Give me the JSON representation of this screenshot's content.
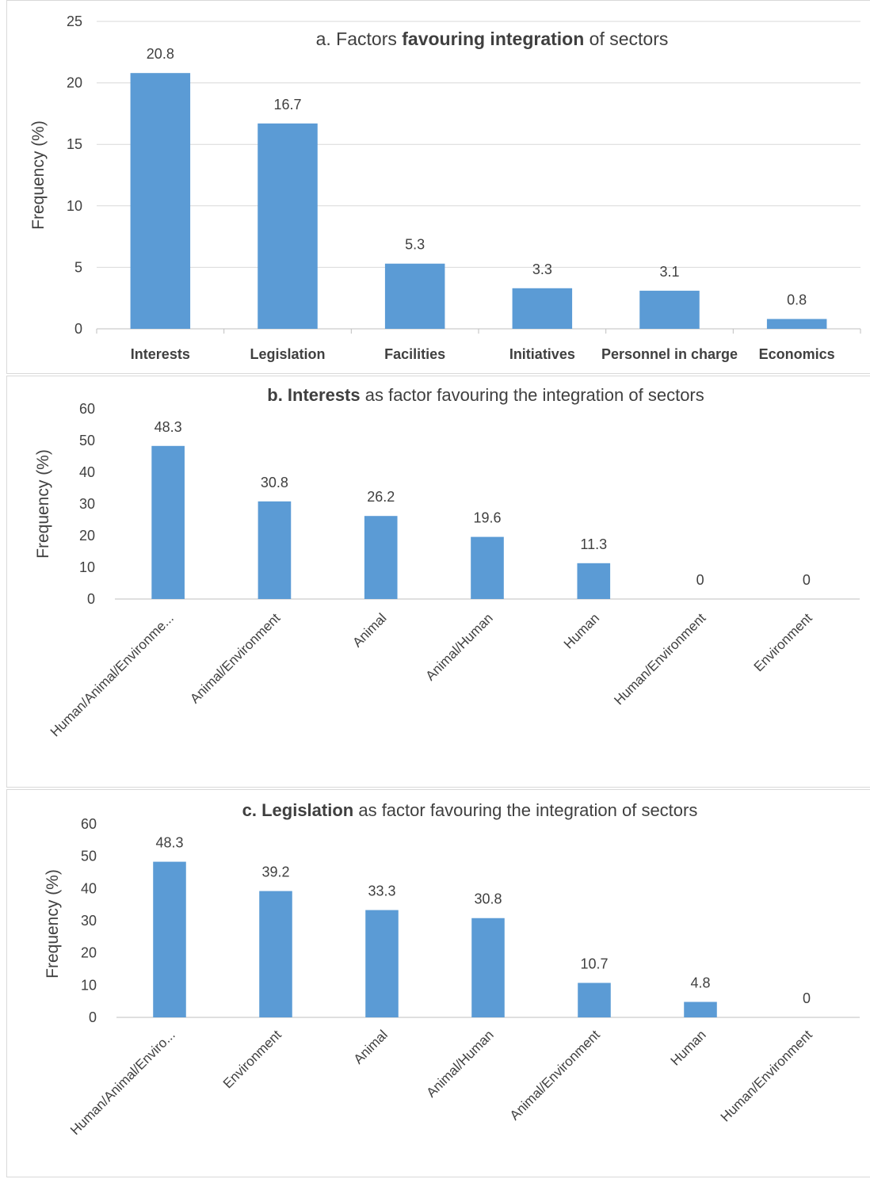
{
  "colors": {
    "bar": "#5b9bd5",
    "grid": "#d9d9d9",
    "text": "#404040",
    "axis": "#bfbfbf"
  },
  "chart_data": [
    {
      "id": "a",
      "type": "bar",
      "title_parts": [
        {
          "text": "a. Factors ",
          "bold": false
        },
        {
          "text": "favouring integration",
          "bold": true
        },
        {
          "text": " of sectors",
          "bold": false
        }
      ],
      "ylabel": "Frequency (%)",
      "xlabel": "",
      "ylim": [
        0,
        25
      ],
      "yticks": [
        "0",
        "5",
        "10",
        "15",
        "20",
        "25"
      ],
      "grid": true,
      "categories": [
        "Interests",
        "Legislation",
        "Facilities",
        "Initiatives",
        "Personnel in charge",
        "Economics"
      ],
      "values": [
        20.8,
        16.7,
        5.3,
        3.3,
        3.1,
        0.8
      ],
      "data_labels": [
        "20.8",
        "16.7",
        "5.3",
        "3.3",
        "3.1",
        "0.8"
      ],
      "bold_categories": true,
      "rotated_categories": false
    },
    {
      "id": "b",
      "type": "bar",
      "title_parts": [
        {
          "text": "b. Interests",
          "bold": true
        },
        {
          "text": " as factor favouring the integration of sectors",
          "bold": false
        }
      ],
      "ylabel": "Frequency (%)",
      "xlabel": "",
      "ylim": [
        0,
        60
      ],
      "yticks": [
        "0",
        "10",
        "20",
        "30",
        "40",
        "50",
        "60"
      ],
      "grid": false,
      "categories": [
        "Human/Animal/Environme...",
        "Animal/Environment",
        "Animal",
        "Animal/Human",
        "Human",
        "Human/Environment",
        "Environment"
      ],
      "values": [
        48.3,
        30.8,
        26.2,
        19.6,
        11.3,
        0,
        0
      ],
      "data_labels": [
        "48.3",
        "30.8",
        "26.2",
        "19.6",
        "11.3",
        "0",
        "0"
      ],
      "bold_categories": false,
      "rotated_categories": true
    },
    {
      "id": "c",
      "type": "bar",
      "title_parts": [
        {
          "text": "c. Legislation",
          "bold": true
        },
        {
          "text": " as factor favouring the integration of sectors",
          "bold": false
        }
      ],
      "ylabel": "Frequency (%)",
      "xlabel": "",
      "ylim": [
        0,
        60
      ],
      "yticks": [
        "0",
        "10",
        "20",
        "30",
        "40",
        "50",
        "60"
      ],
      "grid": false,
      "categories": [
        "Human/Animal/Enviro...",
        "Environment",
        "Animal",
        "Animal/Human",
        "Animal/Environment",
        "Human",
        "Human/Environment"
      ],
      "values": [
        48.3,
        39.2,
        33.3,
        30.8,
        10.7,
        4.8,
        0
      ],
      "data_labels": [
        "48.3",
        "39.2",
        "33.3",
        "30.8",
        "10.7",
        "4.8",
        "0"
      ],
      "bold_categories": false,
      "rotated_categories": true
    }
  ]
}
